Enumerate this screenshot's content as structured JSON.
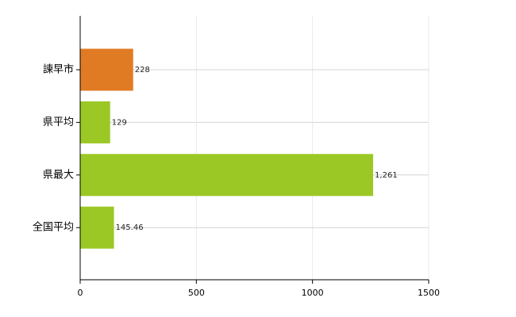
{
  "chart_data": {
    "type": "bar",
    "orientation": "horizontal",
    "categories": [
      "諫早市",
      "県平均",
      "県最大",
      "全国平均"
    ],
    "values": [
      228,
      129,
      1261,
      145.46
    ],
    "value_labels": [
      "228",
      "129",
      "1,261",
      "145.46"
    ],
    "colors": [
      "#e07b24",
      "#9bc825",
      "#9bc825",
      "#9bc825"
    ],
    "xlim": [
      0,
      1500
    ],
    "xticks": [
      0,
      500,
      1000,
      1500
    ],
    "grid": true
  }
}
